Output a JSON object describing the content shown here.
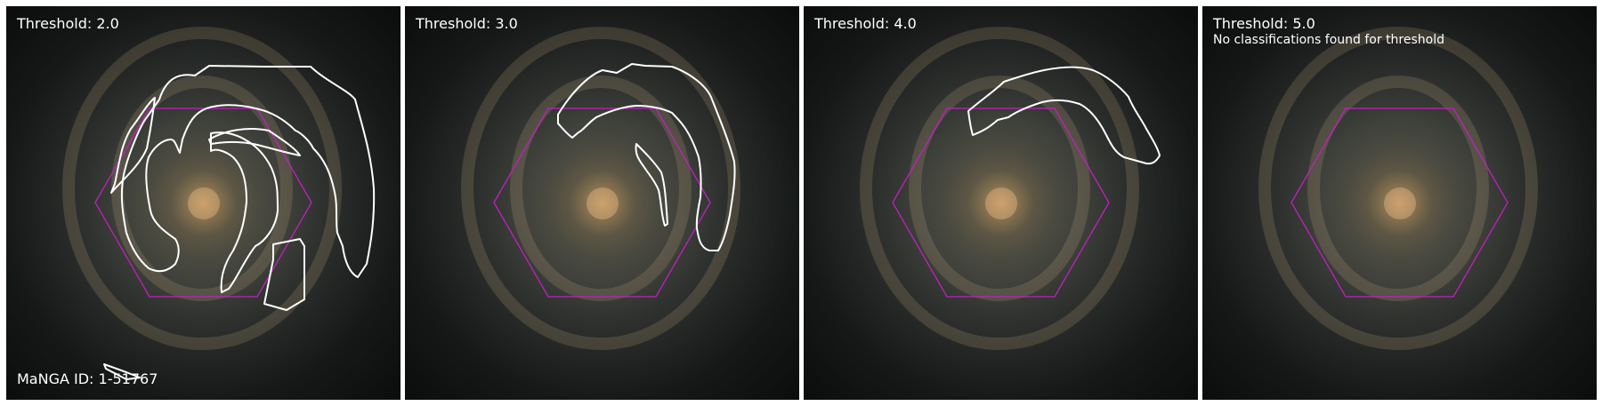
{
  "panels": [
    {
      "title": "Threshold: 2.0",
      "footer": "MaNGA ID: 1-51767"
    },
    {
      "title": "Threshold: 3.0"
    },
    {
      "title": "Threshold: 4.0"
    },
    {
      "title": "Threshold: 5.0",
      "note": "No classifications found for threshold"
    }
  ],
  "colors": {
    "hexagon": "#c21fc2",
    "contour": "#ffffff"
  }
}
